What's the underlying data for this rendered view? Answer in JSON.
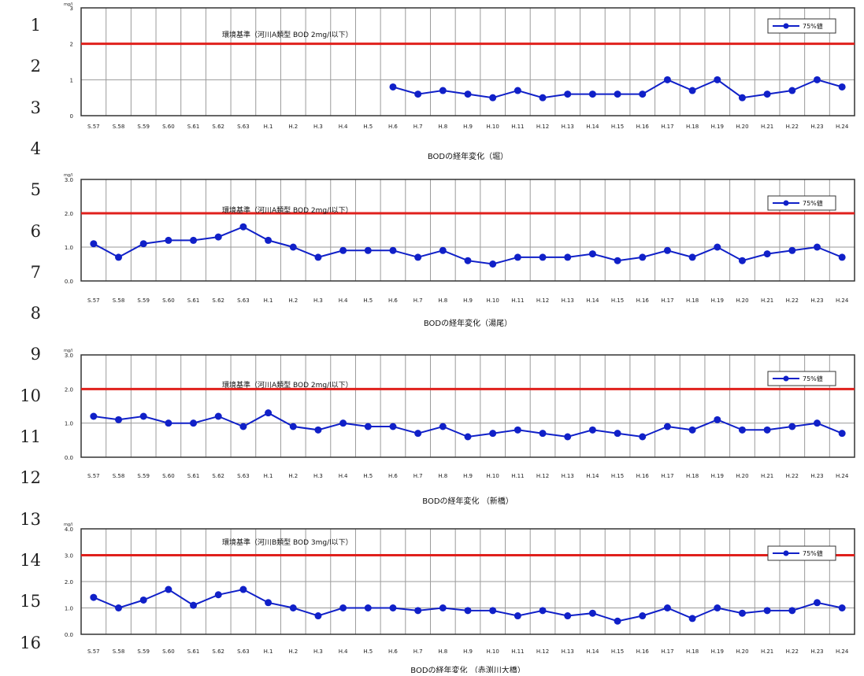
{
  "row_numbers": [
    "1",
    "2",
    "3",
    "4",
    "5",
    "6",
    "7",
    "8",
    "9",
    "10",
    "11",
    "12",
    "13",
    "14",
    "15",
    "16"
  ],
  "colors": {
    "series": "#1020c8",
    "standard": "#e0201c",
    "grid": "#9a9a9a",
    "frame": "#333333"
  },
  "chart_data": [
    {
      "type": "line",
      "ylabel": "mg/l",
      "ylim": [
        0,
        3
      ],
      "yticks": [
        "0",
        "1",
        "2",
        "3"
      ],
      "title": "BODの経年変化（堀）",
      "legend": "75%値",
      "legend_position": "top-right",
      "standard_label": "環境基準（河川A類型 BOD 2mg/l以下）",
      "standard_value": 2,
      "grid": true,
      "categories": [
        "S.57",
        "S.58",
        "S.59",
        "S.60",
        "S.61",
        "S.62",
        "S.63",
        "H.1",
        "H.2",
        "H.3",
        "H.4",
        "H.5",
        "H.6",
        "H.7",
        "H.8",
        "H.9",
        "H.10",
        "H.11",
        "H.12",
        "H.13",
        "H.14",
        "H.15",
        "H.16",
        "H.17",
        "H.18",
        "H.19",
        "H.20",
        "H.21",
        "H.22",
        "H.23",
        "H.24"
      ],
      "series": [
        {
          "name": "75%値",
          "values": [
            null,
            null,
            null,
            null,
            null,
            null,
            null,
            null,
            null,
            null,
            null,
            null,
            0.8,
            0.6,
            0.7,
            0.6,
            0.5,
            0.7,
            0.5,
            0.6,
            0.6,
            0.6,
            0.6,
            1.0,
            0.7,
            1.0,
            0.5,
            0.6,
            0.7,
            1.0,
            0.8
          ]
        }
      ]
    },
    {
      "type": "line",
      "ylabel": "mg/l",
      "ylim": [
        0,
        3
      ],
      "yticks": [
        "0.0",
        "1.0",
        "2.0",
        "3.0"
      ],
      "title": "BODの経年変化（湯尾）",
      "legend": "75%値",
      "legend_position": "top-right",
      "standard_label": "環境基準（河川A類型 BOD 2mg/l以下）",
      "standard_value": 2,
      "grid": true,
      "categories": [
        "S.57",
        "S.58",
        "S.59",
        "S.60",
        "S.61",
        "S.62",
        "S.63",
        "H.1",
        "H.2",
        "H.3",
        "H.4",
        "H.5",
        "H.6",
        "H.7",
        "H.8",
        "H.9",
        "H.10",
        "H.11",
        "H.12",
        "H.13",
        "H.14",
        "H.15",
        "H.16",
        "H.17",
        "H.18",
        "H.19",
        "H.20",
        "H.21",
        "H.22",
        "H.23",
        "H.24"
      ],
      "series": [
        {
          "name": "75%値",
          "values": [
            1.1,
            0.7,
            1.1,
            1.2,
            1.2,
            1.3,
            1.6,
            1.2,
            1.0,
            0.7,
            0.9,
            0.9,
            0.9,
            0.7,
            0.9,
            0.6,
            0.5,
            0.7,
            0.7,
            0.7,
            0.8,
            0.6,
            0.7,
            0.9,
            0.7,
            1.0,
            0.6,
            0.8,
            0.9,
            1.0,
            0.7
          ]
        }
      ]
    },
    {
      "type": "line",
      "ylabel": "mg/l",
      "ylim": [
        0,
        3
      ],
      "yticks": [
        "0.0",
        "1.0",
        "2.0",
        "3.0"
      ],
      "title": "BODの経年変化 （新橋）",
      "legend": "75%値",
      "legend_position": "top-right",
      "standard_label": "環境基準（河川A類型 BOD 2mg/l以下）",
      "standard_value": 2,
      "grid": true,
      "categories": [
        "S.57",
        "S.58",
        "S.59",
        "S.60",
        "S.61",
        "S.62",
        "S.63",
        "H.1",
        "H.2",
        "H.3",
        "H.4",
        "H.5",
        "H.6",
        "H.7",
        "H.8",
        "H.9",
        "H.10",
        "H.11",
        "H.12",
        "H.13",
        "H.14",
        "H.15",
        "H.16",
        "H.17",
        "H.18",
        "H.19",
        "H.20",
        "H.21",
        "H.22",
        "H.23",
        "H.24"
      ],
      "series": [
        {
          "name": "75%値",
          "values": [
            1.2,
            1.1,
            1.2,
            1.0,
            1.0,
            1.2,
            0.9,
            1.3,
            0.9,
            0.8,
            1.0,
            0.9,
            0.9,
            0.7,
            0.9,
            0.6,
            0.7,
            0.8,
            0.7,
            0.6,
            0.8,
            0.7,
            0.6,
            0.9,
            0.8,
            1.1,
            0.8,
            0.8,
            0.9,
            1.0,
            0.7
          ]
        }
      ]
    },
    {
      "type": "line",
      "ylabel": "mg/l",
      "ylim": [
        0,
        4
      ],
      "yticks": [
        "0.0",
        "1.0",
        "2.0",
        "3.0",
        "4.0"
      ],
      "title": "BODの経年変化 （赤渕川大橋）",
      "legend": "75%値",
      "legend_position": "top-right",
      "standard_label": "環境基準（河川B類型 BOD 3mg/l以下）",
      "standard_value": 3,
      "grid": true,
      "categories": [
        "S.57",
        "S.58",
        "S.59",
        "S.60",
        "S.61",
        "S.62",
        "S.63",
        "H.1",
        "H.2",
        "H.3",
        "H.4",
        "H.5",
        "H.6",
        "H.7",
        "H.8",
        "H.9",
        "H.10",
        "H.11",
        "H.12",
        "H.13",
        "H.14",
        "H.15",
        "H.16",
        "H.17",
        "H.18",
        "H.19",
        "H.20",
        "H.21",
        "H.22",
        "H.23",
        "H.24"
      ],
      "series": [
        {
          "name": "75%値",
          "values": [
            1.4,
            1.0,
            1.3,
            1.7,
            1.1,
            1.5,
            1.7,
            1.2,
            1.0,
            0.7,
            1.0,
            1.0,
            1.0,
            0.9,
            1.0,
            0.9,
            0.9,
            0.7,
            0.9,
            0.7,
            0.8,
            0.5,
            0.7,
            1.0,
            0.6,
            1.0,
            0.8,
            0.9,
            0.9,
            1.2,
            1.0
          ]
        }
      ]
    }
  ]
}
